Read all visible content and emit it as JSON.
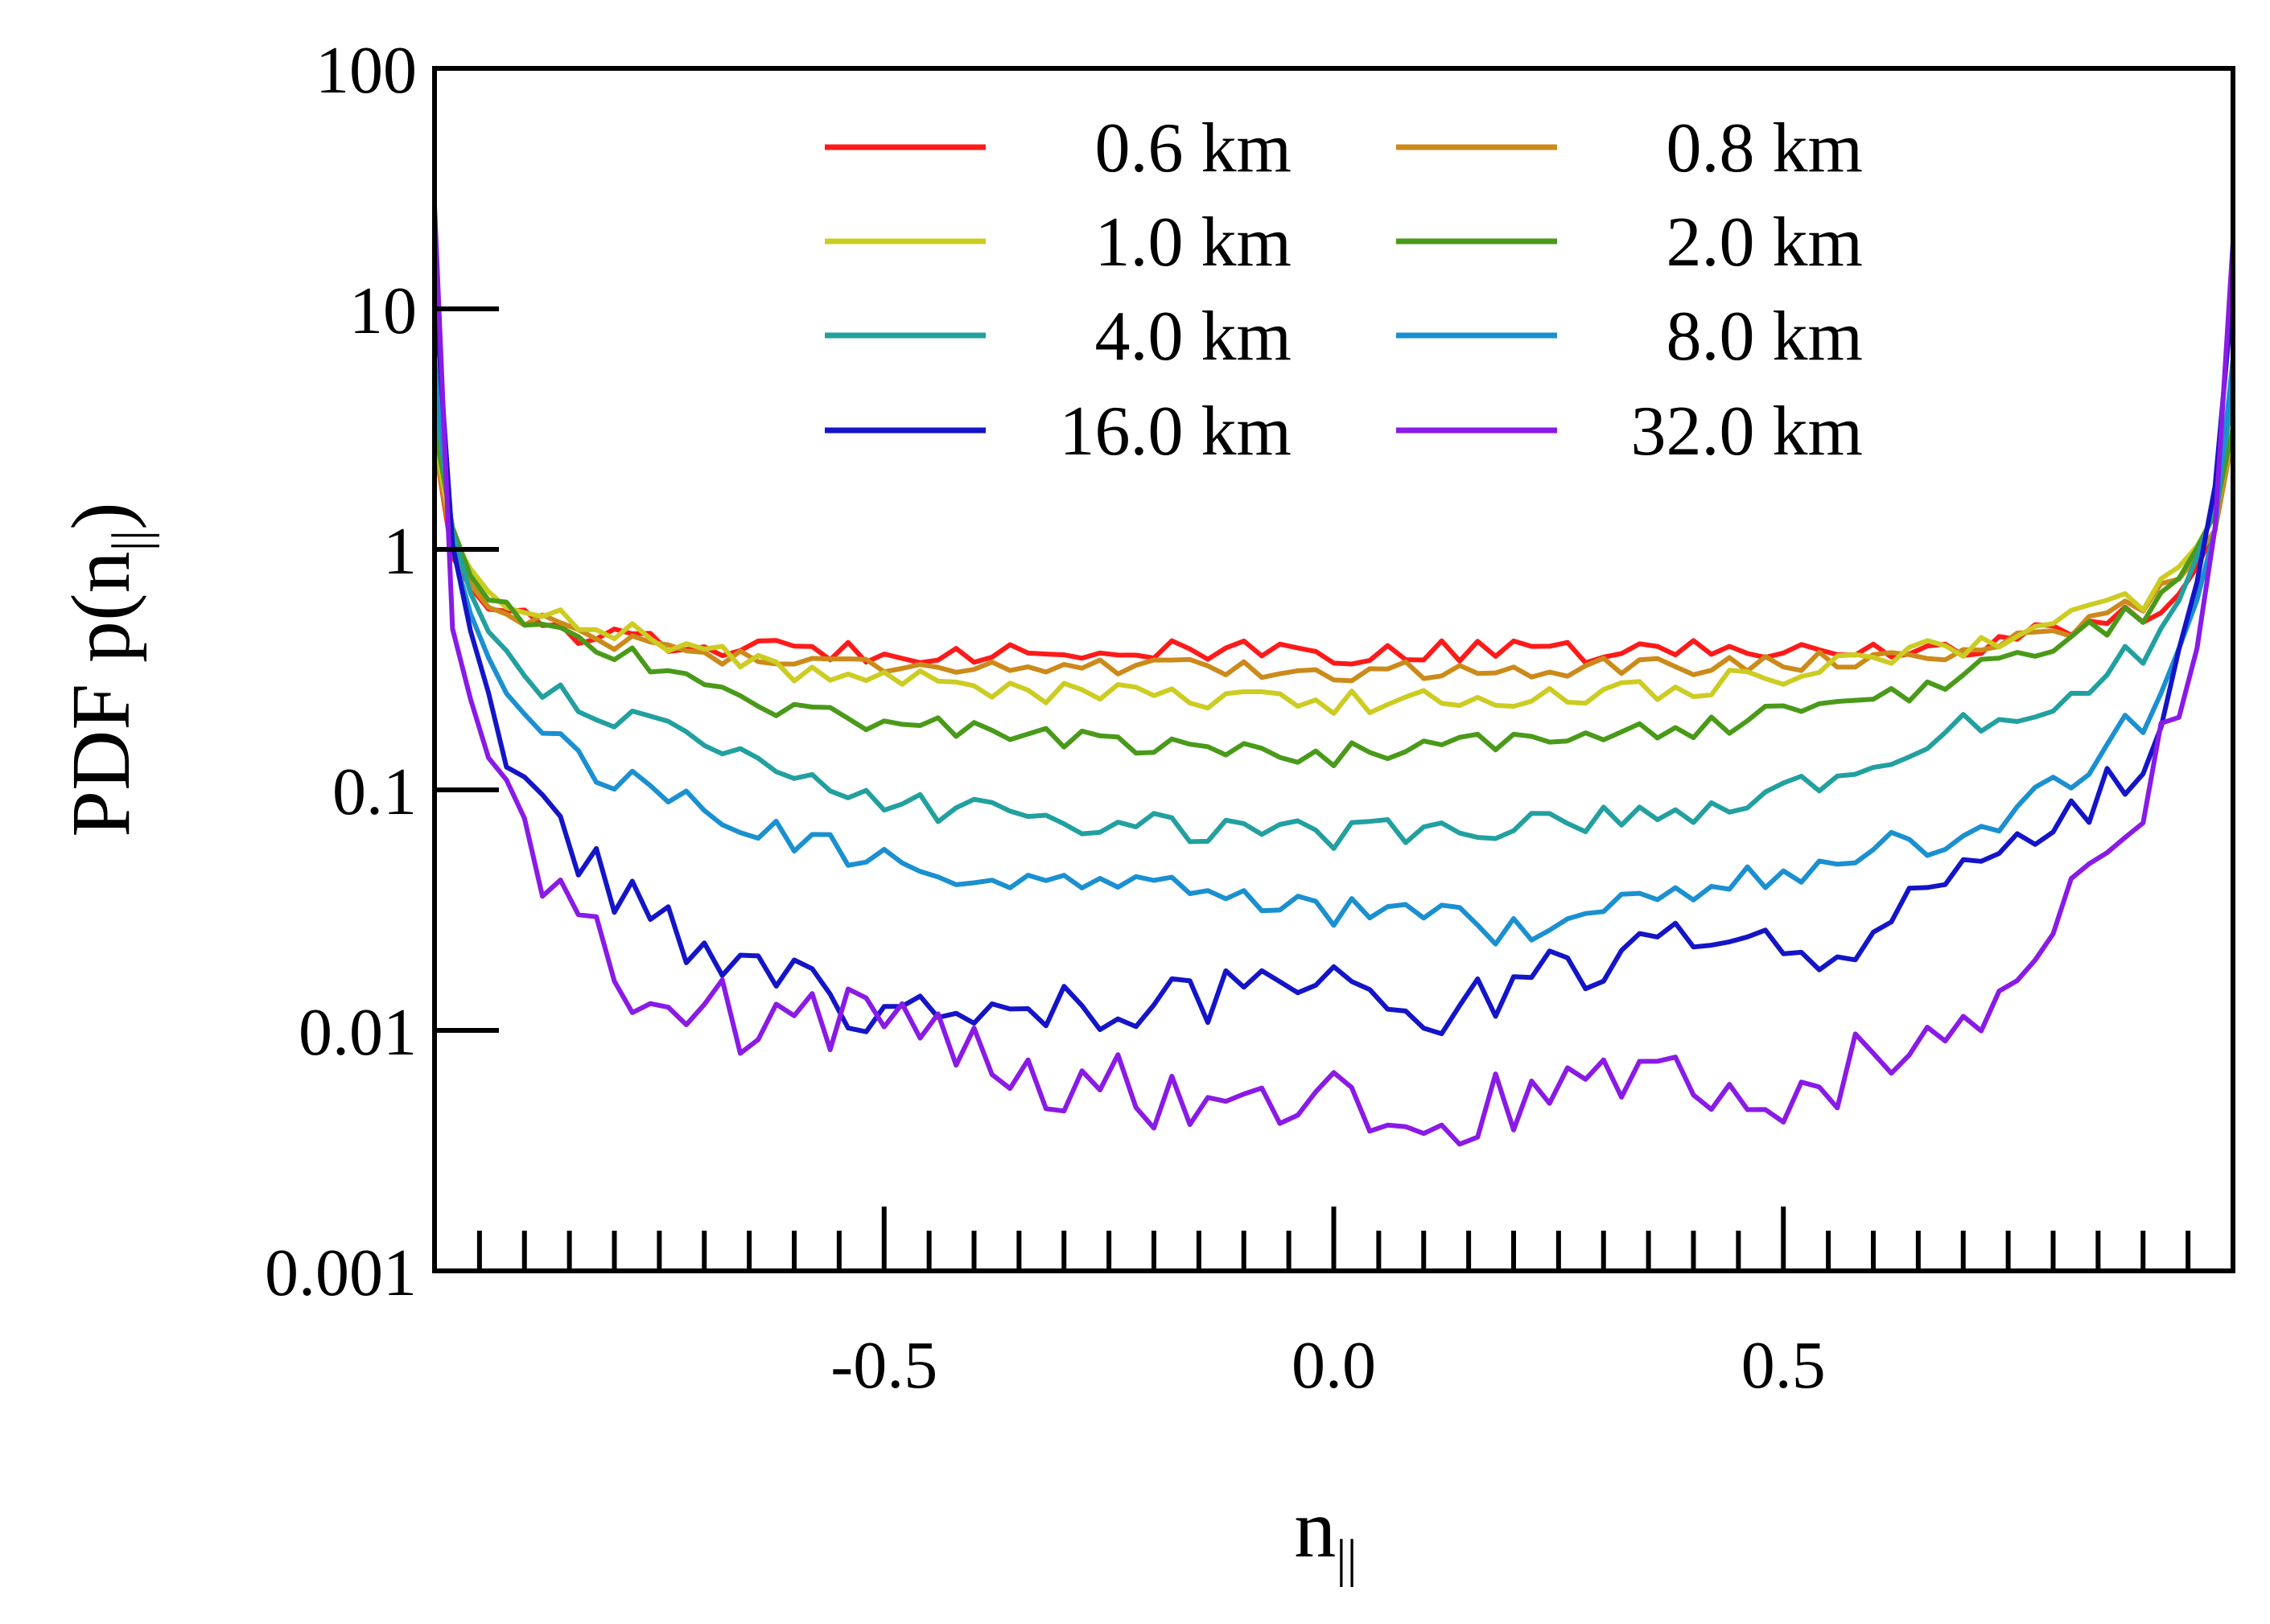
{
  "chart_data": {
    "type": "line",
    "title": "",
    "xlabel": "n",
    "xlabel_sub": "||",
    "ylabel": "PDF p(n",
    "ylabel_sub": "||",
    "ylabel_close": ")",
    "x_scale": "linear",
    "y_scale": "log",
    "xlim": [
      -1.0,
      1.0
    ],
    "ylim": [
      0.001,
      100
    ],
    "x_ticks": [
      {
        "value": -0.5,
        "label": "-0.5"
      },
      {
        "value": 0.0,
        "label": "0.0"
      },
      {
        "value": 0.5,
        "label": "0.5"
      }
    ],
    "y_ticks": [
      {
        "value": 0.001,
        "label": "0.001"
      },
      {
        "value": 0.01,
        "label": "0.01"
      },
      {
        "value": 0.1,
        "label": "0.1"
      },
      {
        "value": 1,
        "label": "1"
      },
      {
        "value": 10,
        "label": "10"
      },
      {
        "value": 100,
        "label": "100"
      }
    ],
    "legend_position": "top-center, two columns",
    "series": [
      {
        "name": "0.6 km",
        "color": "#ff1a1a",
        "base": 0.37,
        "edge": 0.55,
        "lin": 0.0,
        "noise": 0.05,
        "anchors": [
          [
            -1.0,
            2.8
          ],
          [
            -0.98,
            0.95
          ],
          [
            -0.95,
            0.6
          ],
          [
            -0.9,
            0.5
          ],
          [
            -0.8,
            0.42
          ],
          [
            -0.7,
            0.39
          ],
          [
            -0.6,
            0.38
          ],
          [
            0.0,
            0.37
          ],
          [
            0.6,
            0.38
          ],
          [
            0.7,
            0.4
          ],
          [
            0.8,
            0.45
          ],
          [
            0.9,
            0.55
          ],
          [
            0.95,
            0.7
          ],
          [
            0.98,
            1.2
          ],
          [
            1.0,
            3.0
          ]
        ]
      },
      {
        "name": "0.8 km",
        "color": "#cc8a1a",
        "noise": 0.04,
        "anchors": [
          [
            -1.0,
            2.8
          ],
          [
            -0.98,
            1.0
          ],
          [
            -0.95,
            0.6
          ],
          [
            -0.9,
            0.52
          ],
          [
            -0.8,
            0.42
          ],
          [
            -0.7,
            0.37
          ],
          [
            -0.6,
            0.34
          ],
          [
            -0.4,
            0.33
          ],
          [
            0.0,
            0.31
          ],
          [
            0.4,
            0.33
          ],
          [
            0.6,
            0.35
          ],
          [
            0.7,
            0.38
          ],
          [
            0.8,
            0.45
          ],
          [
            0.9,
            0.6
          ],
          [
            0.95,
            0.8
          ],
          [
            0.98,
            1.2
          ],
          [
            1.0,
            3.0
          ]
        ]
      },
      {
        "name": "1.0 km",
        "color": "#cccc22",
        "noise": 0.05,
        "anchors": [
          [
            -1.0,
            3.0
          ],
          [
            -0.98,
            1.1
          ],
          [
            -0.95,
            0.7
          ],
          [
            -0.9,
            0.58
          ],
          [
            -0.8,
            0.47
          ],
          [
            -0.7,
            0.38
          ],
          [
            -0.6,
            0.31
          ],
          [
            -0.4,
            0.27
          ],
          [
            -0.2,
            0.24
          ],
          [
            0.0,
            0.23
          ],
          [
            0.2,
            0.24
          ],
          [
            0.4,
            0.27
          ],
          [
            0.6,
            0.34
          ],
          [
            0.7,
            0.4
          ],
          [
            0.8,
            0.5
          ],
          [
            0.9,
            0.62
          ],
          [
            0.95,
            0.9
          ],
          [
            0.98,
            1.4
          ],
          [
            1.0,
            3.0
          ]
        ]
      },
      {
        "name": "2.0 km",
        "color": "#4a9a1a",
        "noise": 0.05,
        "anchors": [
          [
            -1.0,
            3.2
          ],
          [
            -0.98,
            1.2
          ],
          [
            -0.95,
            0.65
          ],
          [
            -0.9,
            0.5
          ],
          [
            -0.8,
            0.38
          ],
          [
            -0.7,
            0.27
          ],
          [
            -0.6,
            0.21
          ],
          [
            -0.4,
            0.18
          ],
          [
            -0.2,
            0.15
          ],
          [
            0.0,
            0.14
          ],
          [
            0.2,
            0.16
          ],
          [
            0.4,
            0.18
          ],
          [
            0.6,
            0.23
          ],
          [
            0.7,
            0.3
          ],
          [
            0.8,
            0.4
          ],
          [
            0.9,
            0.55
          ],
          [
            0.95,
            0.85
          ],
          [
            0.98,
            1.4
          ],
          [
            1.0,
            3.2
          ]
        ]
      },
      {
        "name": "4.0 km",
        "color": "#22a0a0",
        "noise": 0.06,
        "anchors": [
          [
            -1.0,
            4.5
          ],
          [
            -0.98,
            1.2
          ],
          [
            -0.95,
            0.5
          ],
          [
            -0.9,
            0.3
          ],
          [
            -0.8,
            0.2
          ],
          [
            -0.7,
            0.15
          ],
          [
            -0.6,
            0.11
          ],
          [
            -0.5,
            0.09
          ],
          [
            -0.4,
            0.08
          ],
          [
            -0.2,
            0.07
          ],
          [
            0.0,
            0.065
          ],
          [
            0.2,
            0.07
          ],
          [
            0.4,
            0.08
          ],
          [
            0.5,
            0.1
          ],
          [
            0.6,
            0.12
          ],
          [
            0.7,
            0.18
          ],
          [
            0.8,
            0.24
          ],
          [
            0.9,
            0.38
          ],
          [
            0.95,
            0.7
          ],
          [
            0.98,
            1.5
          ],
          [
            1.0,
            4.5
          ]
        ]
      },
      {
        "name": "8.0 km",
        "color": "#1a90d0",
        "noise": 0.07,
        "anchors": [
          [
            -1.0,
            6.0
          ],
          [
            -0.98,
            1.0
          ],
          [
            -0.95,
            0.4
          ],
          [
            -0.9,
            0.2
          ],
          [
            -0.8,
            0.11
          ],
          [
            -0.7,
            0.08
          ],
          [
            -0.6,
            0.06
          ],
          [
            -0.5,
            0.05
          ],
          [
            -0.4,
            0.045
          ],
          [
            -0.2,
            0.04
          ],
          [
            0.0,
            0.032
          ],
          [
            0.15,
            0.028
          ],
          [
            0.2,
            0.025
          ],
          [
            0.3,
            0.03
          ],
          [
            0.4,
            0.038
          ],
          [
            0.5,
            0.045
          ],
          [
            0.6,
            0.055
          ],
          [
            0.7,
            0.065
          ],
          [
            0.8,
            0.1
          ],
          [
            0.9,
            0.2
          ],
          [
            0.95,
            0.45
          ],
          [
            0.98,
            1.2
          ],
          [
            1.0,
            6.0
          ]
        ]
      },
      {
        "name": "16.0 km",
        "color": "#1414c8",
        "noise": 0.12,
        "anchors": [
          [
            -1.0,
            12.0
          ],
          [
            -0.98,
            1.0
          ],
          [
            -0.95,
            0.3
          ],
          [
            -0.9,
            0.1
          ],
          [
            -0.85,
            0.06
          ],
          [
            -0.8,
            0.035
          ],
          [
            -0.7,
            0.022
          ],
          [
            -0.6,
            0.015
          ],
          [
            -0.5,
            0.012
          ],
          [
            -0.4,
            0.011
          ],
          [
            -0.2,
            0.014
          ],
          [
            0.0,
            0.014
          ],
          [
            0.1,
            0.011
          ],
          [
            0.2,
            0.016
          ],
          [
            0.3,
            0.018
          ],
          [
            0.4,
            0.025
          ],
          [
            0.5,
            0.022
          ],
          [
            0.6,
            0.025
          ],
          [
            0.7,
            0.04
          ],
          [
            0.8,
            0.06
          ],
          [
            0.9,
            0.15
          ],
          [
            0.95,
            0.45
          ],
          [
            0.98,
            1.8
          ],
          [
            1.0,
            12.0
          ]
        ]
      },
      {
        "name": "32.0 km",
        "color": "#8a1ae6",
        "noise": 0.15,
        "anchors": [
          [
            -1.0,
            25.0
          ],
          [
            -0.98,
            0.5
          ],
          [
            -0.95,
            0.15
          ],
          [
            -0.9,
            0.06
          ],
          [
            -0.85,
            0.03
          ],
          [
            -0.8,
            0.018
          ],
          [
            -0.7,
            0.012
          ],
          [
            -0.6,
            0.01
          ],
          [
            -0.5,
            0.012
          ],
          [
            -0.4,
            0.009
          ],
          [
            -0.3,
            0.006
          ],
          [
            -0.2,
            0.0055
          ],
          [
            0.0,
            0.0048
          ],
          [
            0.1,
            0.0045
          ],
          [
            0.2,
            0.0048
          ],
          [
            0.3,
            0.0055
          ],
          [
            0.4,
            0.006
          ],
          [
            0.5,
            0.005
          ],
          [
            0.6,
            0.008
          ],
          [
            0.7,
            0.012
          ],
          [
            0.75,
            0.016
          ],
          [
            0.8,
            0.025
          ],
          [
            0.85,
            0.07
          ],
          [
            0.9,
            0.1
          ],
          [
            0.95,
            0.25
          ],
          [
            0.98,
            1.2
          ],
          [
            1.0,
            20.0
          ]
        ]
      }
    ]
  }
}
